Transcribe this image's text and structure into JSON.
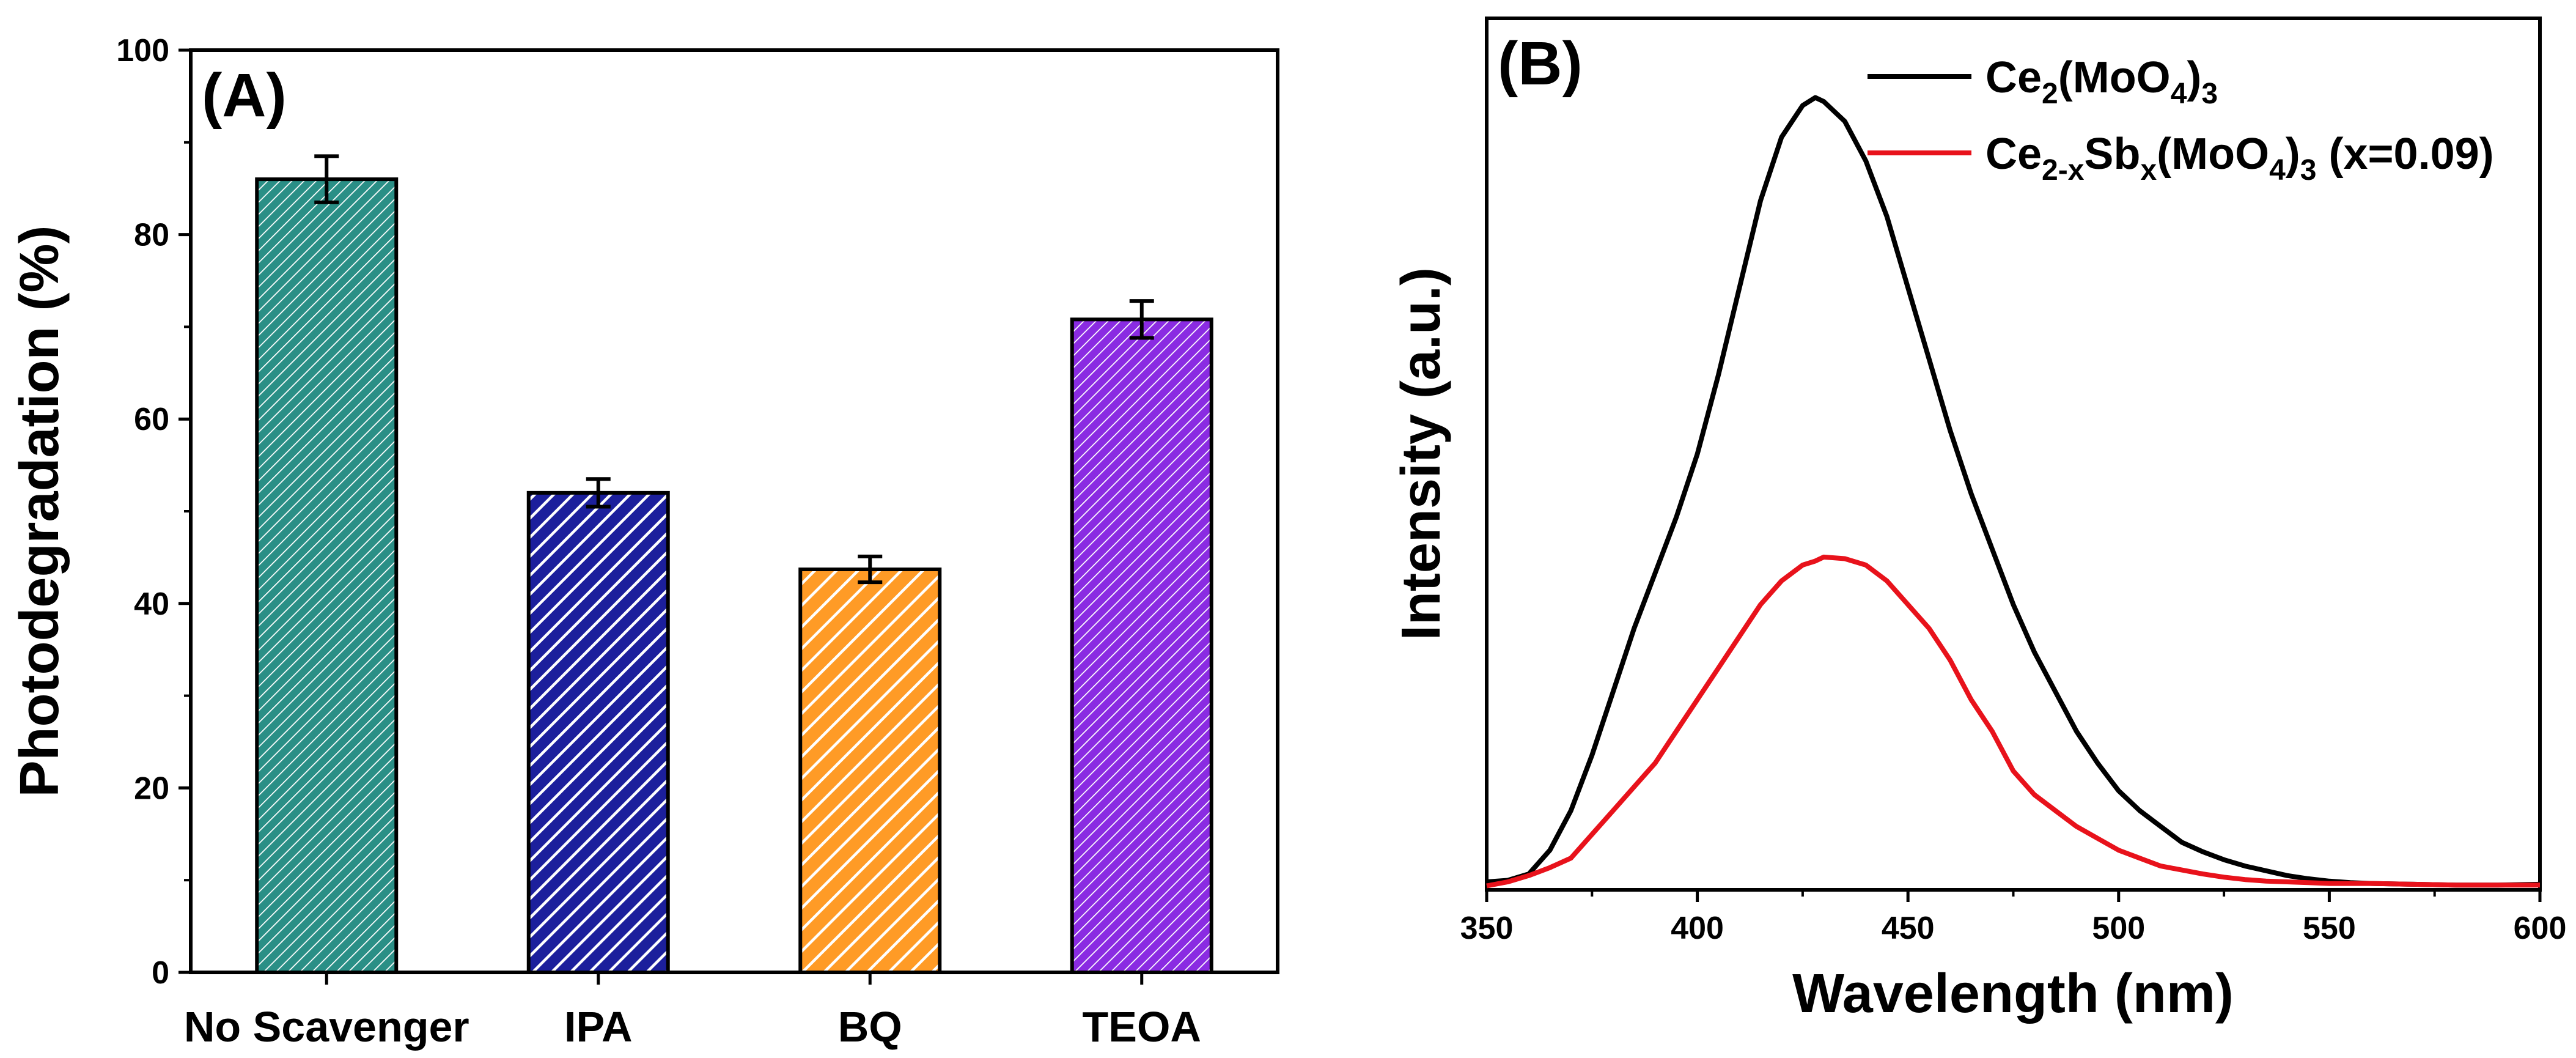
{
  "chart_data": [
    {
      "panel_label": "(A)",
      "type": "bar",
      "title": "",
      "xlabel": "",
      "ylabel": "Photodegradation (%)",
      "ylim": [
        0,
        100
      ],
      "yticks": [
        "0",
        "20",
        "40",
        "60",
        "80",
        "100"
      ],
      "categories": [
        "No Scavenger",
        "IPA",
        "BQ",
        "TEOA"
      ],
      "values": [
        86,
        52,
        43.7,
        70.8
      ],
      "errors": [
        2.5,
        1.5,
        1.4,
        2.0
      ],
      "colors": [
        "#2a8f86",
        "#1c1f9c",
        "#ff9b26",
        "#8a2be2"
      ],
      "grid": false
    },
    {
      "panel_label": "(B)",
      "type": "line",
      "title": "",
      "xlabel": "Wavelength (nm)",
      "ylabel": "Intensity (a.u.)",
      "xlim": [
        350,
        600
      ],
      "ylim": [
        0,
        1.1
      ],
      "xticks": [
        "350",
        "400",
        "450",
        "500",
        "550",
        "600"
      ],
      "grid": false,
      "legend_position": "top-right",
      "x": [
        350,
        355,
        360,
        365,
        370,
        375,
        380,
        385,
        390,
        395,
        400,
        405,
        410,
        415,
        420,
        425,
        428,
        430,
        435,
        440,
        445,
        450,
        455,
        460,
        465,
        470,
        475,
        480,
        485,
        490,
        495,
        500,
        505,
        510,
        515,
        520,
        525,
        530,
        535,
        540,
        545,
        550,
        555,
        560,
        570,
        580,
        590,
        600
      ],
      "series": [
        {
          "name": "Ce2(MoO4)3",
          "legend_parts": [
            {
              "t": "Ce",
              "s": "n"
            },
            {
              "t": "2",
              "s": "sub"
            },
            {
              "t": "(MoO",
              "s": "n"
            },
            {
              "t": "4",
              "s": "sub"
            },
            {
              "t": ")",
              "s": "n"
            },
            {
              "t": "3",
              "s": "sub"
            }
          ],
          "color": "#000000",
          "values": [
            0.01,
            0.012,
            0.02,
            0.05,
            0.1,
            0.17,
            0.25,
            0.33,
            0.4,
            0.47,
            0.55,
            0.65,
            0.76,
            0.87,
            0.95,
            0.99,
            1.0,
            0.995,
            0.97,
            0.92,
            0.85,
            0.76,
            0.67,
            0.58,
            0.5,
            0.43,
            0.36,
            0.3,
            0.25,
            0.2,
            0.16,
            0.125,
            0.1,
            0.08,
            0.06,
            0.048,
            0.038,
            0.03,
            0.024,
            0.018,
            0.014,
            0.011,
            0.009,
            0.008,
            0.007,
            0.006,
            0.006,
            0.007
          ]
        },
        {
          "name": "Ce2-xSbx(MoO4)3 (x=0.09)",
          "legend_parts": [
            {
              "t": "Ce",
              "s": "n"
            },
            {
              "t": "2-x",
              "s": "sub"
            },
            {
              "t": "Sb",
              "s": "n"
            },
            {
              "t": "x",
              "s": "sub"
            },
            {
              "t": "(MoO",
              "s": "n"
            },
            {
              "t": "4",
              "s": "sub"
            },
            {
              "t": ")",
              "s": "n"
            },
            {
              "t": "3",
              "s": "sub"
            },
            {
              "t": " (x=0.09)",
              "s": "n"
            }
          ],
          "color": "#e8121b",
          "values": [
            0.005,
            0.01,
            0.018,
            0.028,
            0.04,
            0.07,
            0.1,
            0.13,
            0.16,
            0.2,
            0.24,
            0.28,
            0.32,
            0.36,
            0.39,
            0.41,
            0.415,
            0.42,
            0.418,
            0.41,
            0.39,
            0.36,
            0.33,
            0.29,
            0.24,
            0.2,
            0.15,
            0.12,
            0.1,
            0.08,
            0.065,
            0.05,
            0.04,
            0.03,
            0.025,
            0.02,
            0.016,
            0.013,
            0.011,
            0.01,
            0.009,
            0.008,
            0.008,
            0.008,
            0.007,
            0.006,
            0.006,
            0.006
          ]
        }
      ]
    }
  ]
}
